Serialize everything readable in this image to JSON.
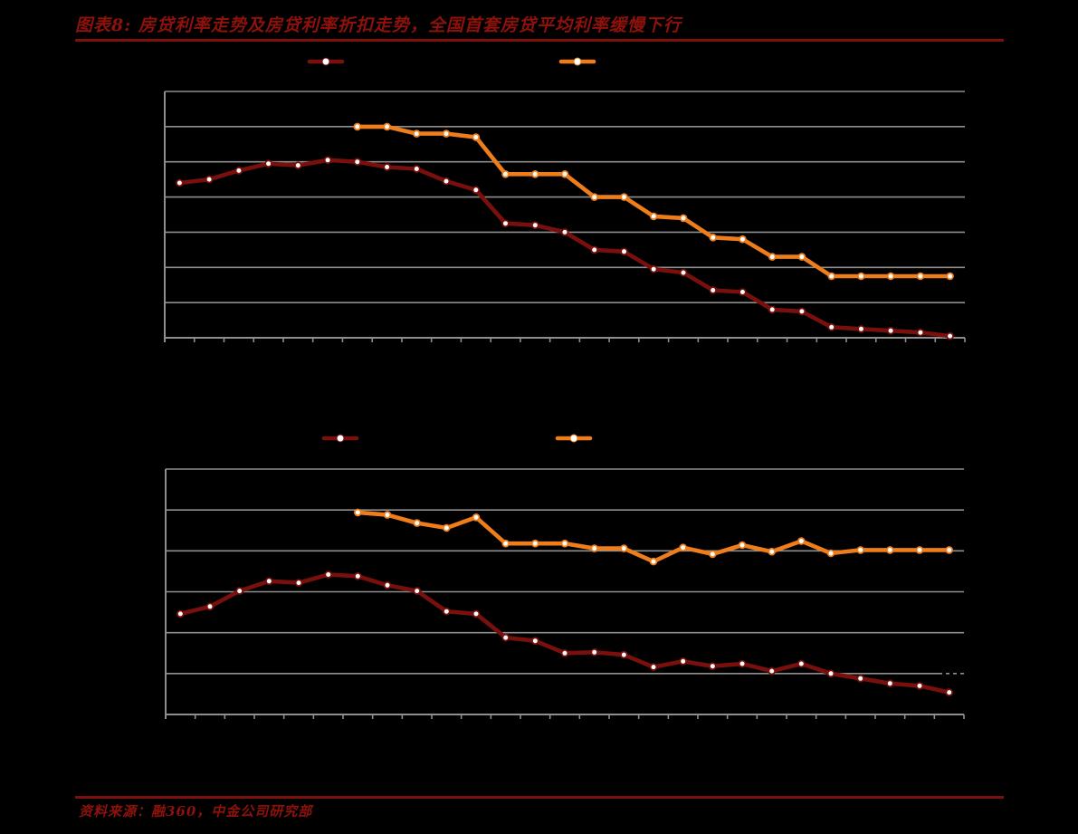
{
  "palette": {
    "background": "#000000",
    "heading_red": "#8E120B",
    "rule_red": "#7E100B",
    "series_dark_red": "#7A100D",
    "series_orange": "#EF7D1A",
    "gridline_gray": "#8E8E8E",
    "marker_fill": "#FFFFFF"
  },
  "header": {
    "title": "图表8: 房贷利率走势及房贷利率折扣走势，全国首套房贷平均利率缓慢下行"
  },
  "footer": {
    "source": "资料来源：融360，中金公司研究部"
  },
  "chart_data": [
    {
      "type": "line",
      "name": "mortgage-rate-trend",
      "title": "",
      "n_points": 27,
      "x_tick_labels_visible": false,
      "y_tick_labels_visible": false,
      "ylim": [
        4.8,
        6.2
      ],
      "y_grid_step": 0.2,
      "grid": true,
      "legend": {
        "position": "top",
        "labels_visible": false,
        "entries": [
          {
            "marker": "line-with-dot",
            "marker_color": "#7A100D"
          },
          {
            "marker": "line-with-dot",
            "marker_color": "#EF7D1A"
          }
        ]
      },
      "series": [
        {
          "id": "dark-red-rate",
          "color": "#7A100D",
          "start_point": 1,
          "values": [
            5.68,
            5.7,
            5.75,
            5.79,
            5.78,
            5.81,
            5.8,
            5.77,
            5.76,
            5.69,
            5.64,
            5.45,
            5.44,
            5.4,
            5.3,
            5.29,
            5.19,
            5.17,
            5.07,
            5.06,
            4.96,
            4.95,
            4.86,
            4.85,
            4.84,
            4.83,
            4.81
          ]
        },
        {
          "id": "orange-rate",
          "color": "#EF7D1A",
          "start_point": 7,
          "values": [
            6.0,
            6.0,
            5.96,
            5.96,
            5.94,
            5.73,
            5.73,
            5.73,
            5.6,
            5.6,
            5.49,
            5.48,
            5.37,
            5.36,
            5.26,
            5.26,
            5.15,
            5.15,
            5.15,
            5.15,
            5.15
          ]
        }
      ]
    },
    {
      "type": "line",
      "name": "mortgage-discount-trend",
      "title": "",
      "n_points": 27,
      "x_tick_labels_visible": false,
      "y_tick_labels_visible": false,
      "ylim": [
        1.0,
        1.3
      ],
      "y_grid_step": 0.05,
      "grid": true,
      "legend": {
        "position": "top",
        "labels_visible": false,
        "entries": [
          {
            "marker": "line-with-dot",
            "marker_color": "#7A100D"
          },
          {
            "marker": "line-with-dot",
            "marker_color": "#EF7D1A"
          }
        ]
      },
      "series": [
        {
          "id": "dark-red-discount",
          "color": "#7A100D",
          "start_point": 1,
          "values": [
            1.123,
            1.132,
            1.151,
            1.163,
            1.161,
            1.171,
            1.169,
            1.158,
            1.151,
            1.126,
            1.123,
            1.094,
            1.09,
            1.075,
            1.076,
            1.073,
            1.058,
            1.065,
            1.059,
            1.062,
            1.053,
            1.062,
            1.05,
            1.044,
            1.038,
            1.035,
            1.027
          ]
        },
        {
          "id": "orange-discount",
          "color": "#EF7D1A",
          "start_point": 7,
          "values": [
            1.247,
            1.244,
            1.234,
            1.228,
            1.241,
            1.209,
            1.209,
            1.209,
            1.203,
            1.203,
            1.187,
            1.204,
            1.196,
            1.207,
            1.199,
            1.212,
            1.197,
            1.201,
            1.201,
            1.201,
            1.201
          ]
        }
      ]
    }
  ]
}
